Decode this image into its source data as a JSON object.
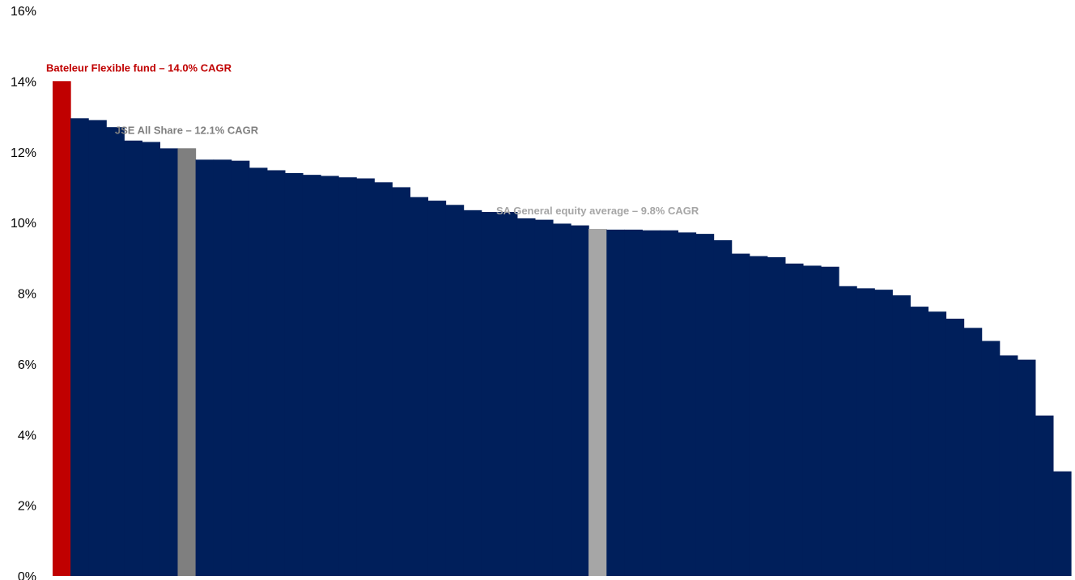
{
  "chart_data": {
    "type": "bar",
    "ylim": [
      0,
      16
    ],
    "y_ticks": [
      "0%",
      "2%",
      "4%",
      "6%",
      "8%",
      "10%",
      "12%",
      "14%",
      "16%"
    ],
    "y_tick_values": [
      0,
      2,
      4,
      6,
      8,
      10,
      12,
      14,
      16
    ],
    "gridlines": false,
    "values": [
      14.0,
      12.95,
      12.9,
      12.7,
      12.32,
      12.28,
      12.1,
      12.1,
      11.78,
      11.78,
      11.75,
      11.55,
      11.48,
      11.4,
      11.35,
      11.32,
      11.28,
      11.25,
      11.14,
      11.0,
      10.72,
      10.62,
      10.5,
      10.35,
      10.3,
      10.3,
      10.12,
      10.08,
      9.97,
      9.92,
      9.82,
      9.8,
      9.8,
      9.78,
      9.78,
      9.72,
      9.68,
      9.5,
      9.12,
      9.05,
      9.02,
      8.84,
      8.78,
      8.75,
      8.2,
      8.14,
      8.1,
      7.94,
      7.62,
      7.48,
      7.28,
      7.02,
      6.65,
      6.24,
      6.12,
      4.54,
      2.96
    ],
    "highlights": [
      {
        "index": 0,
        "color": "#c00000"
      },
      {
        "index": 7,
        "color": "#7f7f7f"
      },
      {
        "index": 30,
        "color": "#a6a6a6"
      }
    ],
    "default_color": "#001f5b",
    "annotations": [
      {
        "text": "Bateleur Flexible fund – 14.0% CAGR",
        "color": "#c00000",
        "bar_index": 0
      },
      {
        "text": "JSE All Share – 12.1% CAGR",
        "color": "#7f7f7f",
        "bar_index": 7
      },
      {
        "text": "SA General equity average – 9.8% CAGR",
        "color": "#a6a6a6",
        "bar_index": 30
      }
    ]
  }
}
